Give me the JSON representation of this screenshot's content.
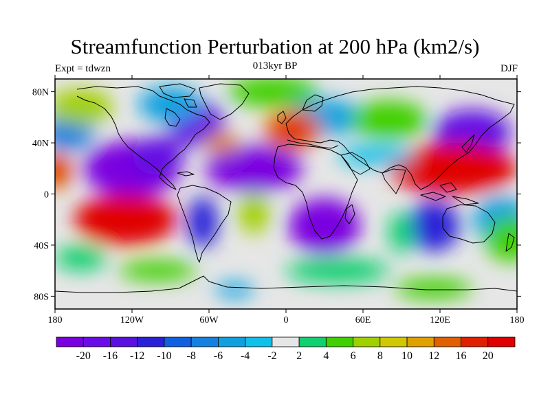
{
  "header": {
    "title": "Streamfunction Perturbation at 200 hPa (km2/s)",
    "subtitle": "013kyr BP",
    "left_string": "Expt = tdwzn",
    "right_string": "DJF"
  },
  "map": {
    "lon_range": [
      -180,
      180
    ],
    "lat_range": [
      -90,
      90
    ],
    "y_ticks": [
      {
        "lat": 80,
        "label": "80N"
      },
      {
        "lat": 40,
        "label": "40N"
      },
      {
        "lat": 0,
        "label": "0"
      },
      {
        "lat": -40,
        "label": "40S"
      },
      {
        "lat": -80,
        "label": "80S"
      }
    ],
    "x_ticks": [
      {
        "lon": -180,
        "label": "180"
      },
      {
        "lon": -120,
        "label": "120W"
      },
      {
        "lon": -60,
        "label": "60W"
      },
      {
        "lon": 0,
        "label": "0"
      },
      {
        "lon": 60,
        "label": "60E"
      },
      {
        "lon": 120,
        "label": "120E"
      },
      {
        "lon": 180,
        "label": "180"
      }
    ],
    "no_data_color": "#e6e6e6",
    "fields": [
      {
        "lon": -120,
        "lat": 20,
        "value": -21,
        "rlon": 38,
        "rlat": 22
      },
      {
        "lon": -25,
        "lat": 20,
        "value": -21,
        "rlon": 38,
        "rlat": 18
      },
      {
        "lon": 30,
        "lat": -25,
        "value": -21,
        "rlon": 28,
        "rlat": 22
      },
      {
        "lon": -70,
        "lat": 55,
        "value": -13,
        "rlon": 22,
        "rlat": 18
      },
      {
        "lon": -65,
        "lat": -22,
        "value": -10,
        "rlon": 12,
        "rlat": 20
      },
      {
        "lon": 115,
        "lat": -25,
        "value": -10,
        "rlon": 20,
        "rlat": 20
      },
      {
        "lon": 145,
        "lat": 48,
        "value": -12,
        "rlon": 30,
        "rlat": 18
      },
      {
        "lon": 168,
        "lat": -20,
        "value": -4,
        "rlon": 22,
        "rlat": 18
      },
      {
        "lon": -170,
        "lat": 48,
        "value": -6,
        "rlon": 20,
        "rlat": 14
      },
      {
        "lon": -90,
        "lat": 70,
        "value": -4,
        "rlon": 25,
        "rlat": 14
      },
      {
        "lon": 30,
        "lat": 60,
        "value": -4,
        "rlon": 30,
        "rlat": 14
      },
      {
        "lon": 5,
        "lat": 50,
        "value": 14,
        "rlon": 22,
        "rlat": 16
      },
      {
        "lon": -50,
        "lat": 40,
        "value": 12,
        "rlon": 14,
        "rlat": 8
      },
      {
        "lon": 130,
        "lat": 20,
        "value": 22,
        "rlon": 50,
        "rlat": 20
      },
      {
        "lon": -125,
        "lat": -20,
        "value": 22,
        "rlon": 40,
        "rlat": 20
      },
      {
        "lon": -180,
        "lat": 18,
        "value": 14,
        "rlon": 14,
        "rlat": 14
      },
      {
        "lon": -160,
        "lat": 68,
        "value": 8,
        "rlon": 25,
        "rlat": 14
      },
      {
        "lon": -10,
        "lat": 80,
        "value": 5,
        "rlon": 35,
        "rlat": 12
      },
      {
        "lon": 80,
        "lat": 58,
        "value": 5,
        "rlon": 30,
        "rlat": 15
      },
      {
        "lon": -25,
        "lat": -15,
        "value": 8,
        "rlon": 12,
        "rlat": 16
      },
      {
        "lon": 175,
        "lat": -35,
        "value": 6,
        "rlon": 20,
        "rlat": 18
      },
      {
        "lon": -100,
        "lat": -60,
        "value": 5,
        "rlon": 30,
        "rlat": 8
      },
      {
        "lon": 115,
        "lat": -74,
        "value": 5,
        "rlon": 30,
        "rlat": 8
      },
      {
        "lon": 40,
        "lat": -60,
        "value": 4,
        "rlon": 40,
        "rlat": 10
      },
      {
        "lon": -160,
        "lat": -50,
        "value": 4,
        "rlon": 20,
        "rlat": 10
      },
      {
        "lon": 90,
        "lat": -30,
        "value": 4,
        "rlon": 10,
        "rlat": 16
      },
      {
        "lon": -40,
        "lat": -75,
        "value": -4,
        "rlon": 15,
        "rlat": 6
      },
      {
        "lon": -100,
        "lat": 30,
        "value": -12,
        "rlon": 20,
        "rlat": 15
      },
      {
        "lon": 70,
        "lat": 30,
        "value": -3,
        "rlon": 30,
        "rlat": 8
      }
    ]
  },
  "colorbar": {
    "colors": [
      "#7a00e0",
      "#6a0ce8",
      "#5a10e0",
      "#2a20d8",
      "#1060e0",
      "#1480e0",
      "#10a0e0",
      "#10c0e8",
      "#e6e6e6",
      "#10d070",
      "#40d000",
      "#a0d000",
      "#d0c800",
      "#e0a000",
      "#e06000",
      "#e02000",
      "#e00000"
    ],
    "levels": [
      -20,
      -16,
      -12,
      -10,
      -8,
      -6,
      -4,
      -2,
      2,
      4,
      6,
      8,
      10,
      12,
      16,
      20
    ],
    "labels": [
      "-20",
      "-16",
      "-12",
      "-10",
      "-8",
      "-6",
      "-4",
      "-2",
      "2",
      "4",
      "6",
      "8",
      "10",
      "12",
      "16",
      "20"
    ]
  }
}
